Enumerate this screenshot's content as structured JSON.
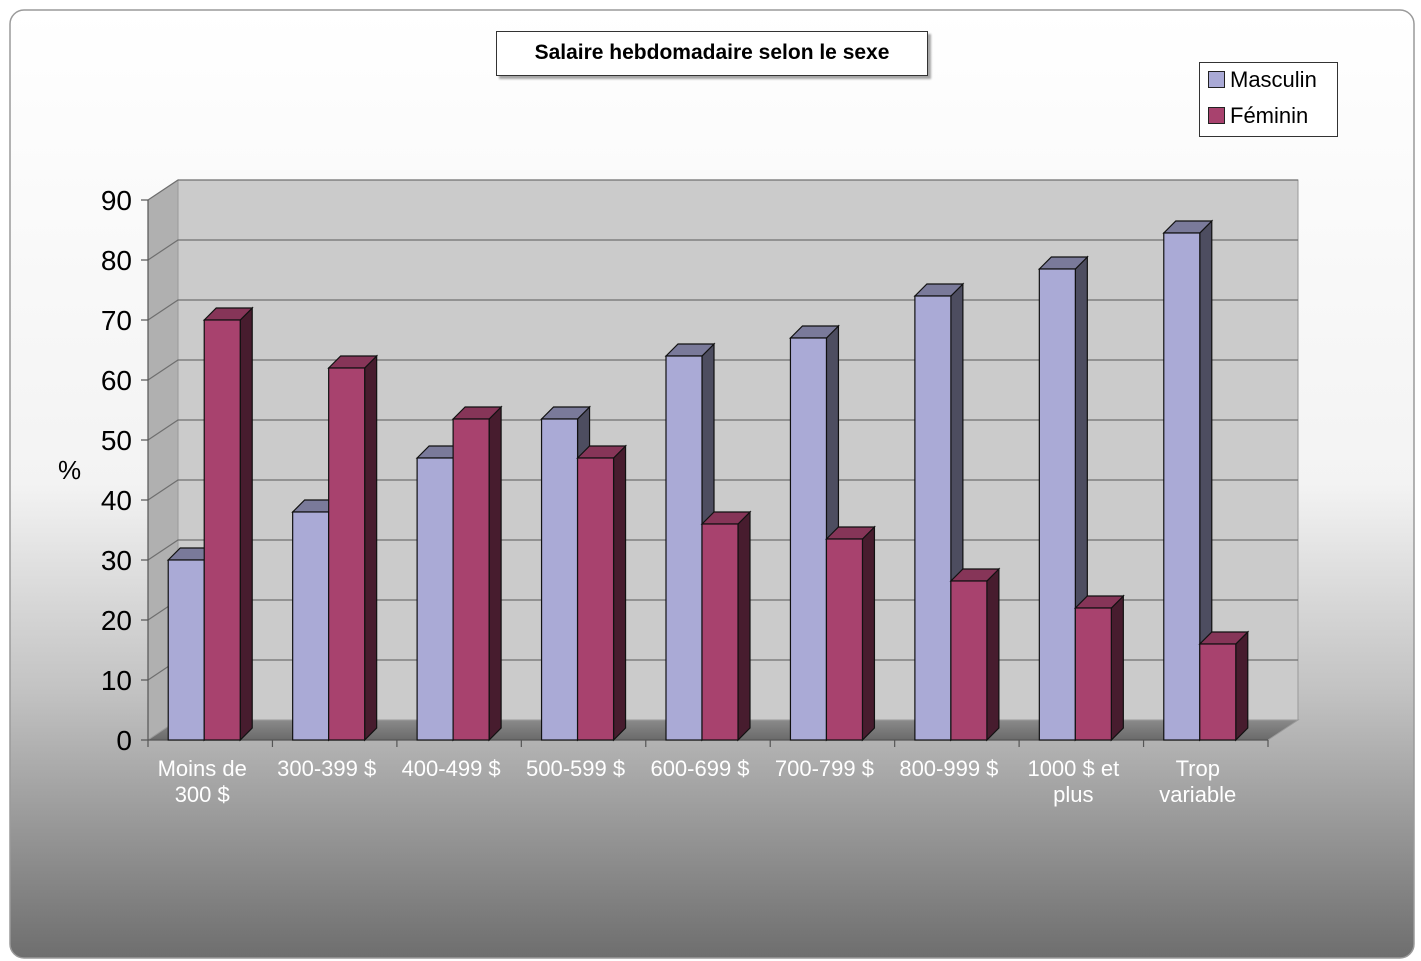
{
  "chart_data": {
    "type": "bar",
    "title": "Salaire hebdomadaire selon le sexe",
    "ylabel": "%",
    "xlabel": "",
    "ylim": [
      0,
      90
    ],
    "yticks": [
      0,
      10,
      20,
      30,
      40,
      50,
      60,
      70,
      80,
      90
    ],
    "categories": [
      "Moins de 300 $",
      "300-399 $",
      "400-499 $",
      "500-599 $",
      "600-699 $",
      "700-799 $",
      "800-999 $",
      "1000 $ et plus",
      "Trop variable"
    ],
    "category_lines": [
      [
        "Moins de",
        "300 $"
      ],
      [
        "300-399 $"
      ],
      [
        "400-499 $"
      ],
      [
        "500-599 $"
      ],
      [
        "600-699 $"
      ],
      [
        "700-799 $"
      ],
      [
        "800-999 $"
      ],
      [
        "1000 $ et",
        "plus"
      ],
      [
        "Trop",
        "variable"
      ]
    ],
    "series": [
      {
        "name": "Masculin",
        "values": [
          30,
          38,
          47,
          53.5,
          64,
          67,
          74,
          78.5,
          84.5
        ],
        "color": "#aaaad6"
      },
      {
        "name": "Féminin",
        "values": [
          70,
          62,
          53.5,
          47,
          36,
          33.5,
          26.5,
          22,
          16
        ],
        "color": "#a8426e"
      }
    ],
    "legend_position": "top-right",
    "grid": true,
    "style": "3d-clustered"
  }
}
